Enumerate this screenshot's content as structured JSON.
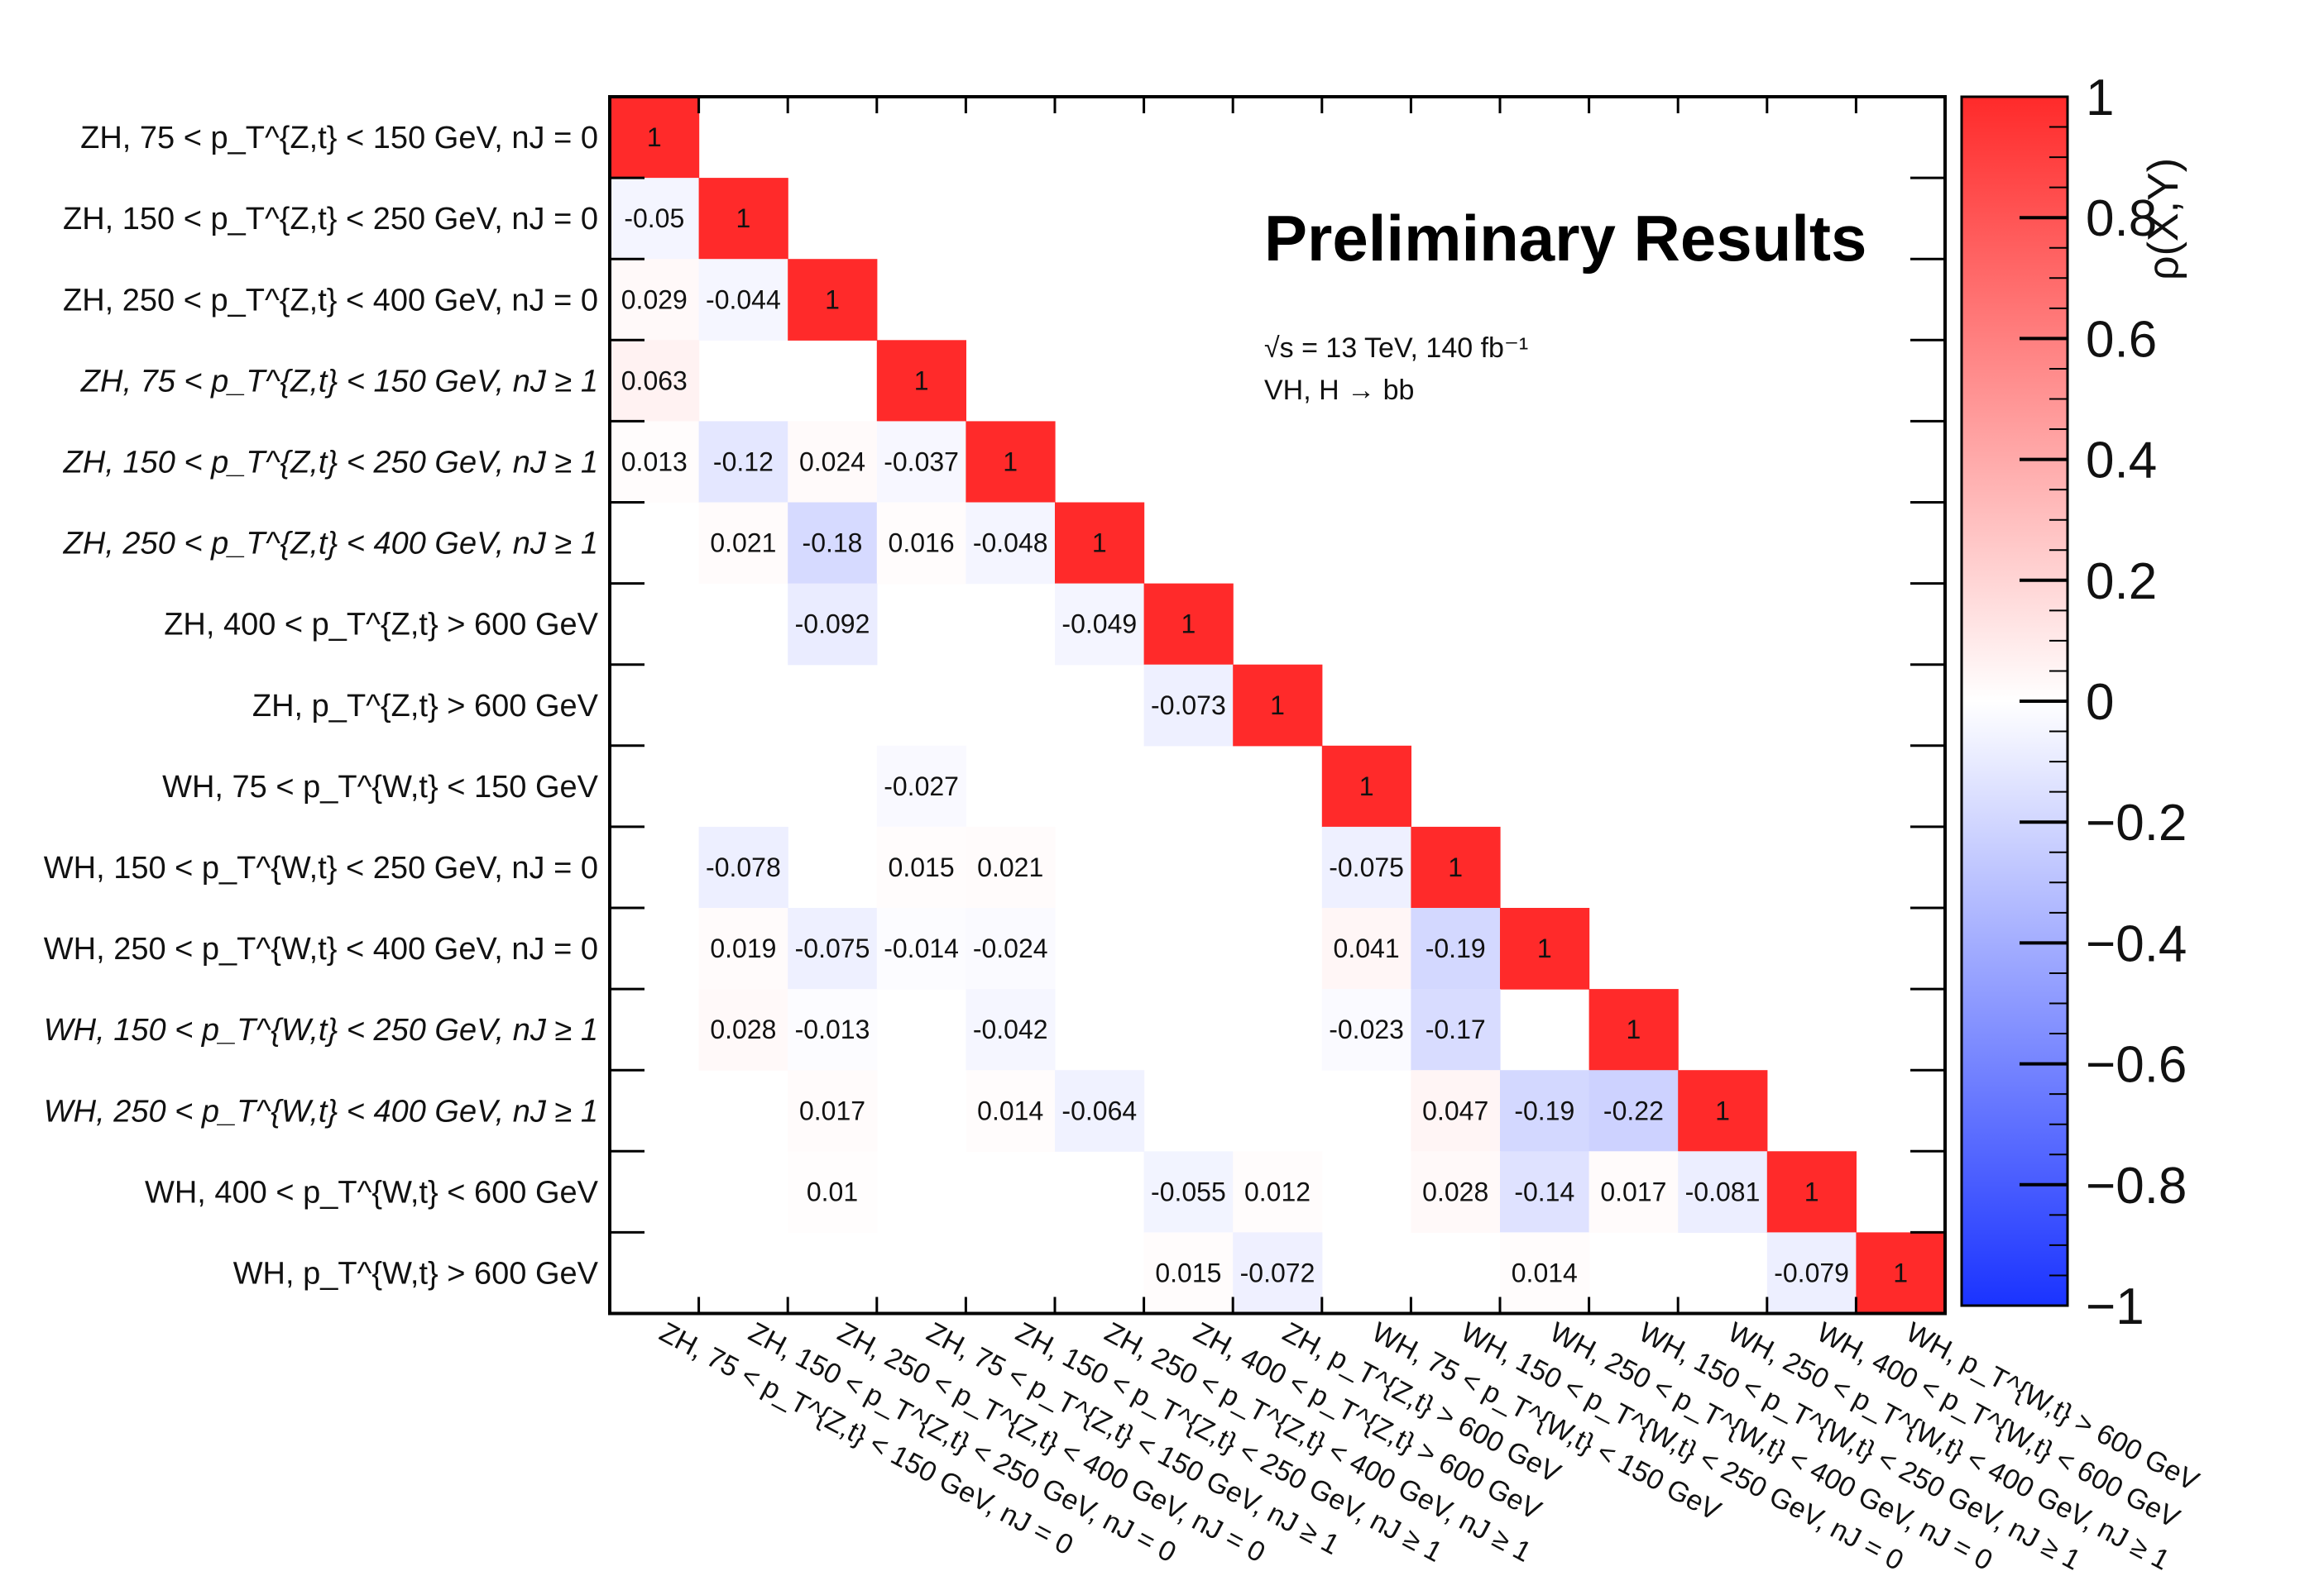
{
  "chart_data": {
    "type": "heatmap",
    "title": "Preliminary Results",
    "annotation": [
      "√s = 13 TeV, 140 fb⁻¹",
      "VH, H → bb"
    ],
    "colorbar": {
      "label": "ρ(X,Y)",
      "range": [
        -1,
        1
      ],
      "ticks": [
        "1",
        "0.8",
        "0.6",
        "0.4",
        "0.2",
        "0",
        "−0.2",
        "−0.4",
        "−0.6",
        "−0.8",
        "−1"
      ],
      "tick_values": [
        1,
        0.8,
        0.6,
        0.4,
        0.2,
        0,
        -0.2,
        -0.4,
        -0.6,
        -0.8,
        -1
      ],
      "color_max": "#ff2a2a",
      "color_mid": "#ffffff",
      "color_min": "#1a33ff"
    },
    "labels": [
      {
        "text": "ZH, 75 < p_T^{Z,t} < 150 GeV, nJ = 0",
        "italic": false
      },
      {
        "text": "ZH, 150 < p_T^{Z,t} < 250 GeV, nJ = 0",
        "italic": false
      },
      {
        "text": "ZH, 250 < p_T^{Z,t} < 400 GeV, nJ = 0",
        "italic": false
      },
      {
        "text": "ZH, 75 < p_T^{Z,t} < 150 GeV, nJ ≥ 1",
        "italic": true
      },
      {
        "text": "ZH, 150 < p_T^{Z,t} < 250 GeV, nJ ≥ 1",
        "italic": true
      },
      {
        "text": "ZH, 250 < p_T^{Z,t} < 400 GeV, nJ ≥ 1",
        "italic": true
      },
      {
        "text": "ZH, 400 < p_T^{Z,t} > 600 GeV",
        "italic": false
      },
      {
        "text": "ZH, p_T^{Z,t} > 600 GeV",
        "italic": false
      },
      {
        "text": "WH, 75 < p_T^{W,t} < 150 GeV",
        "italic": false
      },
      {
        "text": "WH, 150 < p_T^{W,t} < 250 GeV, nJ = 0",
        "italic": false
      },
      {
        "text": "WH, 250 < p_T^{W,t} < 400 GeV, nJ = 0",
        "italic": false
      },
      {
        "text": "WH, 150 < p_T^{W,t} < 250 GeV, nJ ≥ 1",
        "italic": true
      },
      {
        "text": "WH, 250 < p_T^{W,t} < 400 GeV, nJ ≥ 1",
        "italic": true
      },
      {
        "text": "WH, 400 < p_T^{W,t} < 600 GeV",
        "italic": false
      },
      {
        "text": "WH, p_T^{W,t} > 600 GeV",
        "italic": false
      }
    ],
    "cells": [
      {
        "row": 0,
        "col": 0,
        "value": 1,
        "label": "1"
      },
      {
        "row": 1,
        "col": 0,
        "value": -0.05,
        "label": "-0.05"
      },
      {
        "row": 1,
        "col": 1,
        "value": 1,
        "label": "1"
      },
      {
        "row": 2,
        "col": 0,
        "value": 0.029,
        "label": "0.029"
      },
      {
        "row": 2,
        "col": 1,
        "value": -0.044,
        "label": "-0.044"
      },
      {
        "row": 2,
        "col": 2,
        "value": 1,
        "label": "1"
      },
      {
        "row": 3,
        "col": 0,
        "value": 0.063,
        "label": "0.063"
      },
      {
        "row": 3,
        "col": 3,
        "value": 1,
        "label": "1"
      },
      {
        "row": 4,
        "col": 0,
        "value": 0.013,
        "label": "0.013"
      },
      {
        "row": 4,
        "col": 1,
        "value": -0.12,
        "label": "-0.12"
      },
      {
        "row": 4,
        "col": 2,
        "value": 0.024,
        "label": "0.024"
      },
      {
        "row": 4,
        "col": 3,
        "value": -0.037,
        "label": "-0.037"
      },
      {
        "row": 4,
        "col": 4,
        "value": 1,
        "label": "1"
      },
      {
        "row": 5,
        "col": 1,
        "value": 0.021,
        "label": "0.021"
      },
      {
        "row": 5,
        "col": 2,
        "value": -0.18,
        "label": "-0.18"
      },
      {
        "row": 5,
        "col": 3,
        "value": 0.016,
        "label": "0.016"
      },
      {
        "row": 5,
        "col": 4,
        "value": -0.048,
        "label": "-0.048"
      },
      {
        "row": 5,
        "col": 5,
        "value": 1,
        "label": "1"
      },
      {
        "row": 6,
        "col": 2,
        "value": -0.092,
        "label": "-0.092"
      },
      {
        "row": 6,
        "col": 5,
        "value": -0.049,
        "label": "-0.049"
      },
      {
        "row": 6,
        "col": 6,
        "value": 1,
        "label": "1"
      },
      {
        "row": 7,
        "col": 6,
        "value": -0.073,
        "label": "-0.073"
      },
      {
        "row": 7,
        "col": 7,
        "value": 1,
        "label": "1"
      },
      {
        "row": 8,
        "col": 3,
        "value": -0.027,
        "label": "-0.027"
      },
      {
        "row": 8,
        "col": 8,
        "value": 1,
        "label": "1"
      },
      {
        "row": 9,
        "col": 1,
        "value": -0.078,
        "label": "-0.078"
      },
      {
        "row": 9,
        "col": 3,
        "value": 0.015,
        "label": "0.015"
      },
      {
        "row": 9,
        "col": 4,
        "value": 0.021,
        "label": "0.021"
      },
      {
        "row": 9,
        "col": 8,
        "value": -0.075,
        "label": "-0.075"
      },
      {
        "row": 9,
        "col": 9,
        "value": 1,
        "label": "1"
      },
      {
        "row": 10,
        "col": 1,
        "value": 0.019,
        "label": "0.019"
      },
      {
        "row": 10,
        "col": 2,
        "value": -0.075,
        "label": "-0.075"
      },
      {
        "row": 10,
        "col": 3,
        "value": -0.014,
        "label": "-0.014"
      },
      {
        "row": 10,
        "col": 4,
        "value": -0.024,
        "label": "-0.024"
      },
      {
        "row": 10,
        "col": 8,
        "value": 0.041,
        "label": "0.041"
      },
      {
        "row": 10,
        "col": 9,
        "value": -0.19,
        "label": "-0.19"
      },
      {
        "row": 10,
        "col": 10,
        "value": 1,
        "label": "1"
      },
      {
        "row": 11,
        "col": 1,
        "value": 0.028,
        "label": "0.028"
      },
      {
        "row": 11,
        "col": 2,
        "value": -0.013,
        "label": "-0.013"
      },
      {
        "row": 11,
        "col": 4,
        "value": -0.042,
        "label": "-0.042"
      },
      {
        "row": 11,
        "col": 8,
        "value": -0.023,
        "label": "-0.023"
      },
      {
        "row": 11,
        "col": 9,
        "value": -0.17,
        "label": "-0.17"
      },
      {
        "row": 11,
        "col": 11,
        "value": 1,
        "label": "1"
      },
      {
        "row": 12,
        "col": 2,
        "value": 0.017,
        "label": "0.017"
      },
      {
        "row": 12,
        "col": 4,
        "value": 0.014,
        "label": "0.014"
      },
      {
        "row": 12,
        "col": 5,
        "value": -0.064,
        "label": "-0.064"
      },
      {
        "row": 12,
        "col": 9,
        "value": 0.047,
        "label": "0.047"
      },
      {
        "row": 12,
        "col": 10,
        "value": -0.19,
        "label": "-0.19"
      },
      {
        "row": 12,
        "col": 11,
        "value": -0.22,
        "label": "-0.22"
      },
      {
        "row": 12,
        "col": 12,
        "value": 1,
        "label": "1"
      },
      {
        "row": 13,
        "col": 2,
        "value": 0.01,
        "label": "0.01"
      },
      {
        "row": 13,
        "col": 6,
        "value": -0.055,
        "label": "-0.055"
      },
      {
        "row": 13,
        "col": 7,
        "value": 0.012,
        "label": "0.012"
      },
      {
        "row": 13,
        "col": 9,
        "value": 0.028,
        "label": "0.028"
      },
      {
        "row": 13,
        "col": 10,
        "value": -0.14,
        "label": "-0.14"
      },
      {
        "row": 13,
        "col": 11,
        "value": 0.017,
        "label": "0.017"
      },
      {
        "row": 13,
        "col": 12,
        "value": -0.081,
        "label": "-0.081"
      },
      {
        "row": 13,
        "col": 13,
        "value": 1,
        "label": "1"
      },
      {
        "row": 14,
        "col": 6,
        "value": 0.015,
        "label": "0.015"
      },
      {
        "row": 14,
        "col": 7,
        "value": -0.072,
        "label": "-0.072"
      },
      {
        "row": 14,
        "col": 10,
        "value": 0.014,
        "label": "0.014"
      },
      {
        "row": 14,
        "col": 13,
        "value": -0.079,
        "label": "-0.079"
      },
      {
        "row": 14,
        "col": 14,
        "value": 1,
        "label": "1"
      }
    ]
  }
}
